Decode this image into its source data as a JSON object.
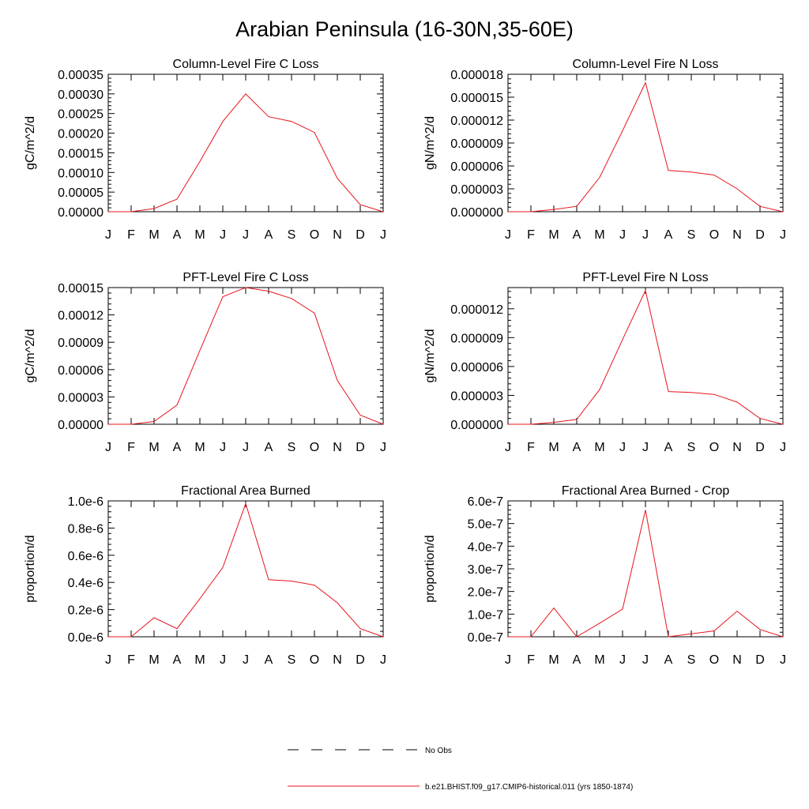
{
  "figure": {
    "title": "Arabian Peninsula (16-30N,35-60E)"
  },
  "month_labels": [
    "J",
    "F",
    "M",
    "A",
    "M",
    "J",
    "J",
    "A",
    "S",
    "O",
    "N",
    "D",
    "J"
  ],
  "colors": {
    "model_line": "#e8141c",
    "obs_line": "#000000",
    "axes": "#000000"
  },
  "chart_data": [
    {
      "type": "line",
      "title": "Column-Level Fire C Loss",
      "ylabel": "gC/m^2/d",
      "ylim": [
        0,
        0.00035
      ],
      "yticks": [
        0,
        5e-05,
        0.0001,
        0.00015,
        0.0002,
        0.00025,
        0.0003,
        0.00035
      ],
      "ytick_labels": [
        "0.00000",
        "0.00005",
        "0.00010",
        "0.00015",
        "0.00020",
        "0.00025",
        "0.00030",
        "0.00035"
      ],
      "x": [
        "J",
        "F",
        "M",
        "A",
        "M",
        "J",
        "J",
        "A",
        "S",
        "O",
        "N",
        "D",
        "J"
      ],
      "series": [
        {
          "values": [
            0,
            0,
            8e-06,
            3.2e-05,
            0.000128,
            0.00023,
            0.0003,
            0.000242,
            0.00023,
            0.000202,
            8.5e-05,
            1.8e-05,
            0
          ]
        }
      ]
    },
    {
      "type": "line",
      "title": "Column-Level Fire N Loss",
      "ylabel": "gN/m^2/d",
      "ylim": [
        0,
        1.8e-05
      ],
      "yticks": [
        0,
        3e-06,
        6e-06,
        9e-06,
        1.2e-05,
        1.5e-05,
        1.8e-05
      ],
      "ytick_labels": [
        "0.000000",
        "0.000003",
        "0.000006",
        "0.000009",
        "0.000012",
        "0.000015",
        "0.000018"
      ],
      "x": [
        "J",
        "F",
        "M",
        "A",
        "M",
        "J",
        "J",
        "A",
        "S",
        "O",
        "N",
        "D",
        "J"
      ],
      "series": [
        {
          "values": [
            0,
            0,
            3e-07,
            7e-07,
            4.5e-06,
            1.06e-05,
            1.69e-05,
            5.4e-06,
            5.2e-06,
            4.8e-06,
            3e-06,
            7e-07,
            0
          ]
        }
      ]
    },
    {
      "type": "line",
      "title": "PFT-Level Fire C Loss",
      "ylabel": "gC/m^2/d",
      "ylim": [
        0,
        0.00015
      ],
      "yticks": [
        0,
        3e-05,
        6e-05,
        9e-05,
        0.00012,
        0.00015
      ],
      "ytick_labels": [
        "0.00000",
        "0.00003",
        "0.00006",
        "0.00009",
        "0.00012",
        "0.00015"
      ],
      "x": [
        "J",
        "F",
        "M",
        "A",
        "M",
        "J",
        "J",
        "A",
        "S",
        "O",
        "N",
        "D",
        "J"
      ],
      "series": [
        {
          "values": [
            0,
            0,
            3e-06,
            2.1e-05,
            8.1e-05,
            0.00014,
            0.00015,
            0.000146,
            0.000138,
            0.000122,
            4.8e-05,
            1e-05,
            0
          ]
        }
      ]
    },
    {
      "type": "line",
      "title": "PFT-Level Fire N Loss",
      "ylabel": "gN/m^2/d",
      "ylim": [
        0,
        1.42e-05
      ],
      "yticks": [
        0,
        3e-06,
        6e-06,
        9e-06,
        1.2e-05
      ],
      "ytick_labels": [
        "0.000000",
        "0.000003",
        "0.000006",
        "0.000009",
        "0.000012"
      ],
      "x": [
        "J",
        "F",
        "M",
        "A",
        "M",
        "J",
        "J",
        "A",
        "S",
        "O",
        "N",
        "D",
        "J"
      ],
      "series": [
        {
          "values": [
            0,
            0,
            2e-07,
            5e-07,
            3.6e-06,
            8.8e-06,
            1.39e-05,
            3.4e-06,
            3.3e-06,
            3.1e-06,
            2.3e-06,
            6e-07,
            0
          ]
        }
      ]
    },
    {
      "type": "line",
      "title": "Fractional Area Burned",
      "ylabel": "proportion/d",
      "ylim": [
        0,
        1e-06
      ],
      "yticks": [
        0,
        2e-07,
        4e-07,
        6e-07,
        8e-07,
        1e-06
      ],
      "ytick_labels": [
        "0.0e-6",
        "0.2e-6",
        "0.4e-6",
        "0.6e-6",
        "0.8e-6",
        "1.0e-6"
      ],
      "x": [
        "J",
        "F",
        "M",
        "A",
        "M",
        "J",
        "J",
        "A",
        "S",
        "O",
        "N",
        "D",
        "J"
      ],
      "series": [
        {
          "values": [
            0,
            0,
            1.4e-07,
            6e-08,
            2.8e-07,
            5.1e-07,
            9.8e-07,
            4.2e-07,
            4.1e-07,
            3.8e-07,
            2.5e-07,
            6e-08,
            0
          ]
        }
      ]
    },
    {
      "type": "line",
      "title": "Fractional Area Burned - Crop",
      "ylabel": "proportion/d",
      "ylim": [
        0,
        6e-07
      ],
      "yticks": [
        0,
        1e-07,
        2e-07,
        3e-07,
        4e-07,
        5e-07,
        6e-07
      ],
      "ytick_labels": [
        "0.0e-7",
        "1.0e-7",
        "2.0e-7",
        "3.0e-7",
        "4.0e-7",
        "5.0e-7",
        "6.0e-7"
      ],
      "x": [
        "J",
        "F",
        "M",
        "A",
        "M",
        "J",
        "J",
        "A",
        "S",
        "O",
        "N",
        "D",
        "J"
      ],
      "series": [
        {
          "values": [
            0,
            0,
            1.27e-07,
            0,
            6e-08,
            1.22e-07,
            5.6e-07,
            0,
            1.3e-08,
            2.6e-08,
            1.13e-07,
            3.2e-08,
            0
          ]
        }
      ]
    }
  ],
  "legend": {
    "items": [
      {
        "label": "No Obs",
        "style": "dashed",
        "color": "#000000"
      },
      {
        "label": "b.e21.BHIST.f09_g17.CMIP6-historical.011 (yrs 1850-1874)",
        "style": "solid",
        "color": "#e8141c"
      }
    ]
  }
}
